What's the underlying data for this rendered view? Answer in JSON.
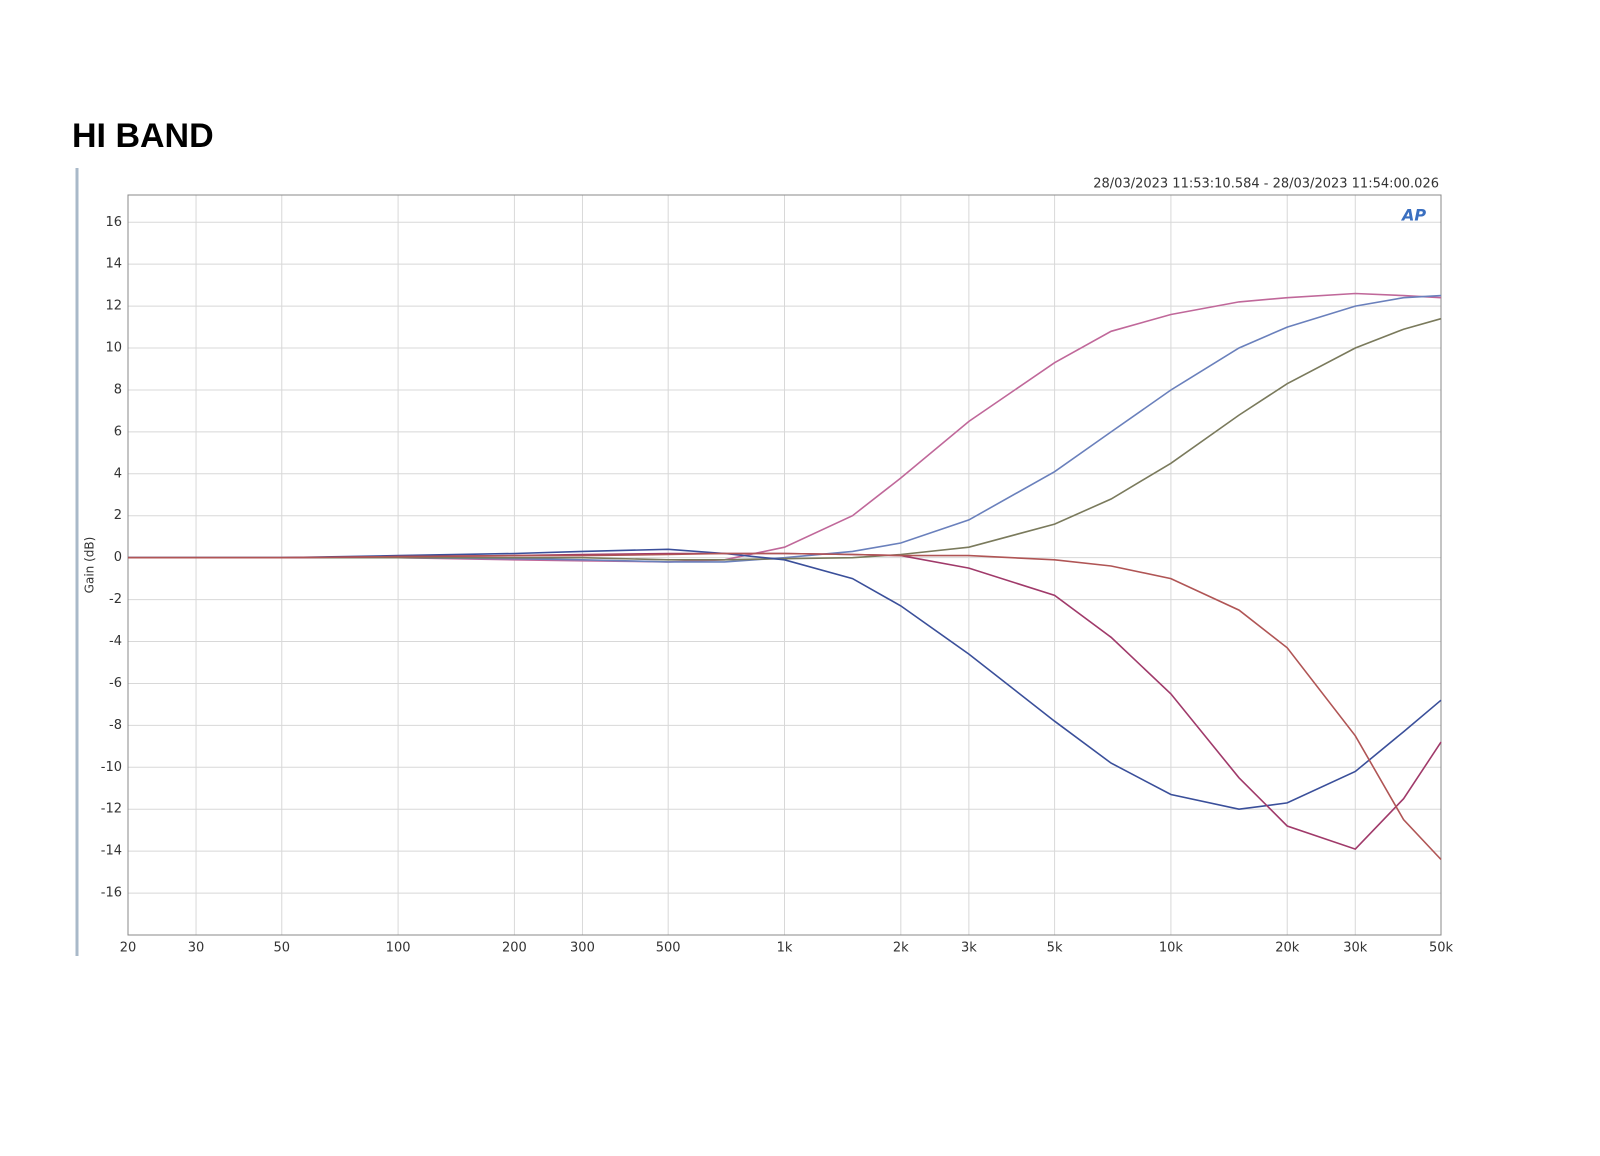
{
  "title": "HI BAND",
  "chart_data": {
    "type": "line",
    "subtitle": "28/03/2023 11:53:10.584 - 28/03/2023 11:54:00.026",
    "logo": "AP",
    "y_label": "Gain (dB)",
    "x_log": true,
    "grid": true,
    "xlim": [
      20,
      50000
    ],
    "ylim": [
      -18,
      17.3
    ],
    "xticks": [
      20,
      30,
      50,
      100,
      200,
      300,
      500,
      {
        "value": 1000,
        "label": "1k"
      },
      {
        "value": 2000,
        "label": "2k"
      },
      {
        "value": 3000,
        "label": "3k"
      },
      {
        "value": 5000,
        "label": "5k"
      },
      {
        "value": 10000,
        "label": "10k"
      },
      {
        "value": 20000,
        "label": "20k"
      },
      {
        "value": 30000,
        "label": "30k"
      },
      {
        "value": 50000,
        "label": "50k"
      }
    ],
    "yticks": [
      16,
      14,
      12,
      10,
      8,
      6,
      4,
      2,
      0,
      -2,
      -4,
      -6,
      -8,
      -10,
      -12,
      -14,
      -16
    ],
    "x": [
      20,
      50,
      100,
      200,
      300,
      500,
      700,
      1000,
      1500,
      2000,
      3000,
      5000,
      7000,
      10000,
      15000,
      20000,
      30000,
      40000,
      50000
    ],
    "series": [
      {
        "color": "#c0689a",
        "values": [
          0,
          0,
          0,
          -0.1,
          -0.15,
          -0.2,
          -0.1,
          0.5,
          2,
          3.8,
          6.5,
          9.3,
          10.8,
          11.6,
          12.2,
          12.4,
          12.6,
          12.5,
          12.4
        ]
      },
      {
        "color": "#6a80bc",
        "values": [
          0,
          0,
          0,
          -0.05,
          -0.1,
          -0.2,
          -0.2,
          0,
          0.3,
          0.7,
          1.8,
          4.1,
          6,
          8,
          10,
          11,
          12,
          12.4,
          12.5
        ]
      },
      {
        "color": "#7a7a5c",
        "values": [
          0,
          0,
          0,
          0,
          0,
          -0.1,
          -0.1,
          -0.05,
          0,
          0.15,
          0.5,
          1.6,
          2.8,
          4.5,
          6.8,
          8.3,
          10,
          10.9,
          11.4
        ]
      },
      {
        "color": "#3a4f9a",
        "values": [
          0,
          0,
          0.1,
          0.2,
          0.3,
          0.4,
          0.2,
          -0.1,
          -1,
          -2.3,
          -4.6,
          -7.8,
          -9.8,
          -11.3,
          -12,
          -11.7,
          -10.2,
          -8.3,
          -6.8
        ]
      },
      {
        "color": "#a03a6a",
        "values": [
          0,
          0,
          0.05,
          0.1,
          0.15,
          0.2,
          0.2,
          0.2,
          0.15,
          0.1,
          -0.5,
          -1.8,
          -3.8,
          -6.5,
          -10.5,
          -12.8,
          -13.9,
          -11.5,
          -8.8
        ]
      },
      {
        "color": "#b05555",
        "values": [
          0,
          0,
          0.05,
          0.1,
          0.1,
          0.15,
          0.2,
          0.2,
          0.15,
          0.1,
          0.1,
          -0.1,
          -0.4,
          -1,
          -2.5,
          -4.3,
          -8.5,
          -12.5,
          -14.4
        ]
      }
    ]
  }
}
